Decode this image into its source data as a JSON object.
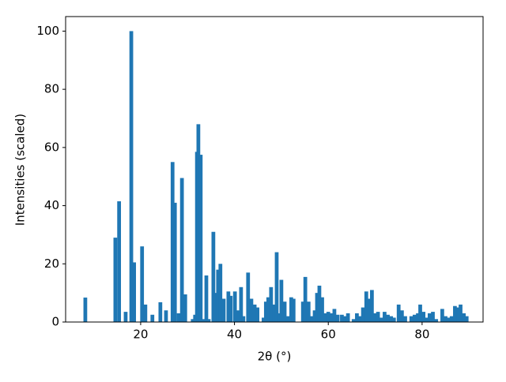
{
  "chart_data": {
    "type": "bar",
    "xlabel": "2θ (°)",
    "ylabel": "Intensities (scaled)",
    "color": "#1f77b4",
    "x": [
      8.2,
      14.6,
      15.4,
      16.8,
      18.0,
      18.6,
      20.3,
      21.0,
      22.5,
      24.2,
      25.4,
      26.8,
      27.3,
      28.1,
      28.8,
      29.5,
      31.1,
      31.6,
      32.0,
      32.3,
      32.8,
      33.3,
      34.0,
      34.5,
      35.5,
      36.0,
      36.5,
      37.0,
      37.7,
      38.7,
      39.2,
      40.1,
      40.8,
      41.4,
      41.9,
      42.9,
      43.6,
      44.3,
      44.9,
      46.2,
      46.7,
      47.2,
      47.8,
      48.4,
      49.0,
      49.5,
      50.0,
      50.7,
      51.4,
      52.1,
      52.6,
      54.6,
      55.1,
      55.8,
      56.5,
      57.1,
      57.6,
      58.1,
      58.7,
      59.3,
      60.0,
      60.6,
      61.3,
      62.0,
      62.9,
      63.6,
      64.2,
      65.4,
      66.1,
      66.8,
      67.4,
      68.1,
      68.6,
      69.3,
      70.0,
      70.6,
      71.3,
      72.0,
      72.7,
      73.4,
      74.0,
      75.0,
      75.7,
      76.4,
      77.7,
      78.4,
      79.1,
      79.6,
      80.3,
      80.9,
      81.6,
      82.3,
      83.0,
      84.3,
      85.0,
      85.6,
      86.3,
      87.0,
      87.7,
      88.2,
      88.9,
      89.5
    ],
    "values": [
      8.4,
      29,
      41.5,
      3.5,
      100,
      20.5,
      26,
      6,
      2.5,
      6.8,
      4,
      55,
      41,
      3,
      49.5,
      9.5,
      1,
      2.5,
      58.5,
      68,
      57.5,
      1,
      16,
      1,
      31,
      10,
      18,
      20,
      8,
      10.5,
      9,
      10.5,
      4,
      12,
      2,
      17,
      8,
      6,
      5,
      1.5,
      7,
      8.5,
      12,
      6,
      24,
      3,
      14.5,
      7,
      2,
      8.5,
      8,
      7,
      15.5,
      7,
      2,
      4,
      10,
      12.5,
      8.5,
      3,
      3.5,
      3,
      4.5,
      2.5,
      2.5,
      2,
      3,
      1,
      3,
      2,
      5,
      10.5,
      8,
      11,
      3,
      3.5,
      1.5,
      3.5,
      2.5,
      2,
      1.5,
      6,
      4,
      2,
      2,
      2.5,
      3,
      6,
      3.5,
      1.5,
      3,
      3.5,
      1,
      4.5,
      2,
      1.5,
      2,
      5.5,
      5,
      6,
      3,
      2
    ],
    "xlim": [
      4,
      93
    ],
    "ylim": [
      0,
      105
    ],
    "xticks": [
      20,
      40,
      60,
      80
    ],
    "yticks": [
      0,
      20,
      40,
      60,
      80,
      100
    ]
  }
}
